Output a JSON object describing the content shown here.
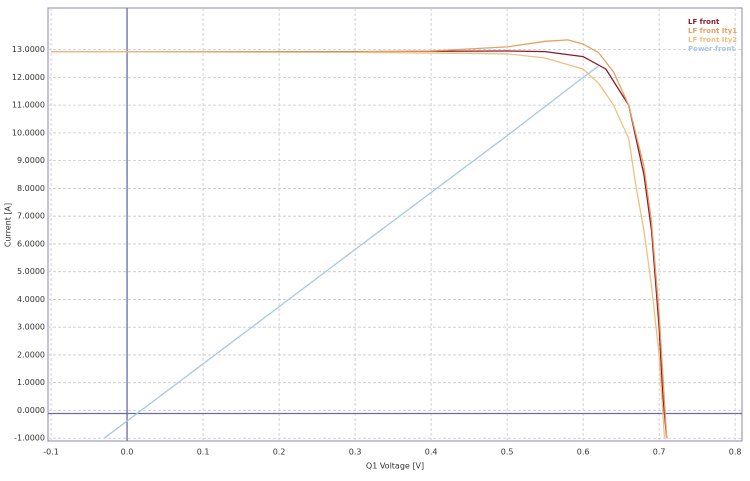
{
  "chart_data": {
    "type": "line",
    "x_label": "Q1 Voltage [V]",
    "y_label": "Current [A]",
    "xlim": [
      -0.104,
      0.809
    ],
    "ylim": [
      -1.1,
      14.5
    ],
    "xticks": [
      -0.1,
      {
        "value": 0,
        "label": "0.0"
      },
      0.1,
      0.2,
      0.3,
      0.4,
      0.5,
      0.6,
      0.7,
      0.8
    ],
    "yticks": [
      {
        "value": -1,
        "label": "-1.0000"
      },
      {
        "value": 0,
        "label": "0.0000"
      },
      {
        "value": 1,
        "label": "1.0000"
      },
      {
        "value": 2,
        "label": "2.0000"
      },
      {
        "value": 3,
        "label": "3.0000"
      },
      {
        "value": 4,
        "label": "4.0000"
      },
      {
        "value": 5,
        "label": "5.0000"
      },
      {
        "value": 6,
        "label": "6.0000"
      },
      {
        "value": 7,
        "label": "7.0000"
      },
      {
        "value": 8,
        "label": "8.0000"
      },
      {
        "value": 9,
        "label": "9.0000"
      },
      {
        "value": 10,
        "label": "10.0000"
      },
      {
        "value": 11,
        "label": "11.0000"
      },
      {
        "value": 12,
        "label": "12.0000"
      },
      {
        "value": 13,
        "label": "13.0000"
      }
    ],
    "grid": true,
    "legend": "upper right",
    "series": [
      {
        "name": "LF front",
        "color": "#8b1a2a",
        "x": [
          -0.1,
          0.0,
          0.3,
          0.5,
          0.55,
          0.6,
          0.63,
          0.66,
          0.68,
          0.69,
          0.7,
          0.705,
          0.71
        ],
        "values": [
          12.92,
          12.92,
          12.93,
          12.95,
          12.93,
          12.75,
          12.3,
          11.0,
          8.5,
          6.5,
          3.0,
          0.5,
          -1.0
        ]
      },
      {
        "name": "LF front Ity1",
        "color": "#e8a060",
        "x": [
          -0.1,
          0.0,
          0.3,
          0.4,
          0.5,
          0.55,
          0.58,
          0.6,
          0.62,
          0.64,
          0.66,
          0.68,
          0.69,
          0.7,
          0.71
        ],
        "values": [
          12.92,
          12.92,
          12.92,
          12.95,
          13.1,
          13.3,
          13.35,
          13.2,
          12.9,
          12.2,
          11.0,
          8.8,
          6.8,
          3.5,
          -1.0
        ]
      },
      {
        "name": "LF front Ity2",
        "color": "#f0c080",
        "x": [
          -0.1,
          0.0,
          0.3,
          0.5,
          0.55,
          0.6,
          0.62,
          0.64,
          0.66,
          0.67,
          0.68,
          0.69,
          0.7,
          0.707
        ],
        "values": [
          12.92,
          12.92,
          12.9,
          12.85,
          12.7,
          12.3,
          11.8,
          11.0,
          9.8,
          8.0,
          6.5,
          4.5,
          2.0,
          -1.0
        ]
      },
      {
        "name": "Power front",
        "color": "#a8c8e8",
        "x": [
          -0.03,
          0.3,
          0.5,
          0.6,
          0.62
        ],
        "values": [
          -1.0,
          5.8,
          9.9,
          12.0,
          12.4
        ]
      }
    ]
  }
}
